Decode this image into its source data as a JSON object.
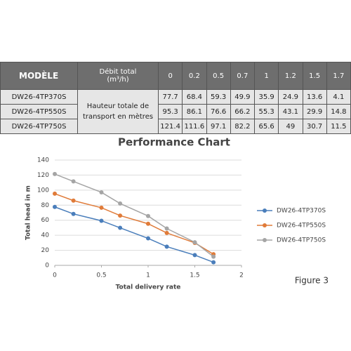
{
  "table": {
    "header": [
      "MODÈLE",
      "Débit total",
      "(m³/h)",
      "0",
      "0.2",
      "0.5",
      "0.7",
      "1",
      "1.2",
      "1.5",
      "1.7"
    ],
    "row_label": "Hauteur totale de transport en mètres",
    "rows": [
      [
        "DW26-4TP370S",
        "77.7",
        "68.4",
        "59.3",
        "49.9",
        "35.9",
        "24.9",
        "13.6",
        "4.1"
      ],
      [
        "DW26-4TP550S",
        "95.3",
        "86.1",
        "76.6",
        "66.2",
        "55.3",
        "43.1",
        "29.9",
        "14.8"
      ],
      [
        "DW26-4TP750S",
        "121.4",
        "111.6",
        "97.1",
        "82.2",
        "65.6",
        "49",
        "30.7",
        "11.5"
      ]
    ]
  },
  "chart_data": {
    "type": "line",
    "title": "Performance Chart",
    "x_label": "Total delivery rate",
    "y_label": "Total head in m",
    "x": [
      0,
      0.2,
      0.5,
      0.7,
      1,
      1.2,
      1.5,
      1.7
    ],
    "series": [
      {
        "name": "DW26-4TP370S",
        "color": "#4a7ebb",
        "values": [
          77.7,
          68.4,
          59.3,
          49.9,
          35.9,
          24.9,
          13.6,
          4.1
        ]
      },
      {
        "name": "DW26-4TP550S",
        "color": "#e07b39",
        "values": [
          95.3,
          86.1,
          76.6,
          66.2,
          55.3,
          43.1,
          29.9,
          14.8
        ]
      },
      {
        "name": "DW26-4TP750S",
        "color": "#a5a5a5",
        "values": [
          121.4,
          111.6,
          97.1,
          82.2,
          65.6,
          49,
          30.7,
          11.5
        ]
      }
    ],
    "xlim": [
      0,
      2
    ],
    "xticks": [
      0,
      0.5,
      1,
      1.5,
      2
    ],
    "ylim": [
      0,
      140
    ],
    "yticks": [
      0,
      20,
      40,
      60,
      80,
      100,
      120,
      140
    ],
    "grid": true,
    "legend": "right"
  },
  "caption": "Figure 3"
}
